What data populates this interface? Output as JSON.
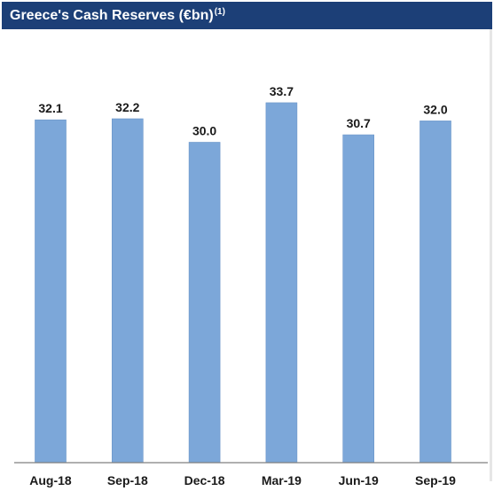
{
  "chart_data": {
    "type": "bar",
    "title": "Greece's Cash Reserves (€bn)",
    "title_note": "(1)",
    "categories": [
      "Aug-18",
      "Sep-18",
      "Dec-18",
      "Mar-19",
      "Jun-19",
      "Sep-19"
    ],
    "values": [
      32.1,
      32.2,
      30.0,
      33.7,
      30.7,
      32.0
    ],
    "labels": [
      "32.1",
      "32.2",
      "30.0",
      "33.7",
      "30.7",
      "32.0"
    ],
    "xlabel": "",
    "ylabel": "",
    "ylim": [
      0,
      35
    ],
    "grid": false,
    "legend": "none",
    "colors": {
      "bar": "#7ca7d9",
      "bar_edge": "#6a94c8",
      "title_bg": "#1c3f77",
      "title_text": "#ffffff",
      "axis": "#808080",
      "label_text": "#1a1a1a"
    }
  }
}
